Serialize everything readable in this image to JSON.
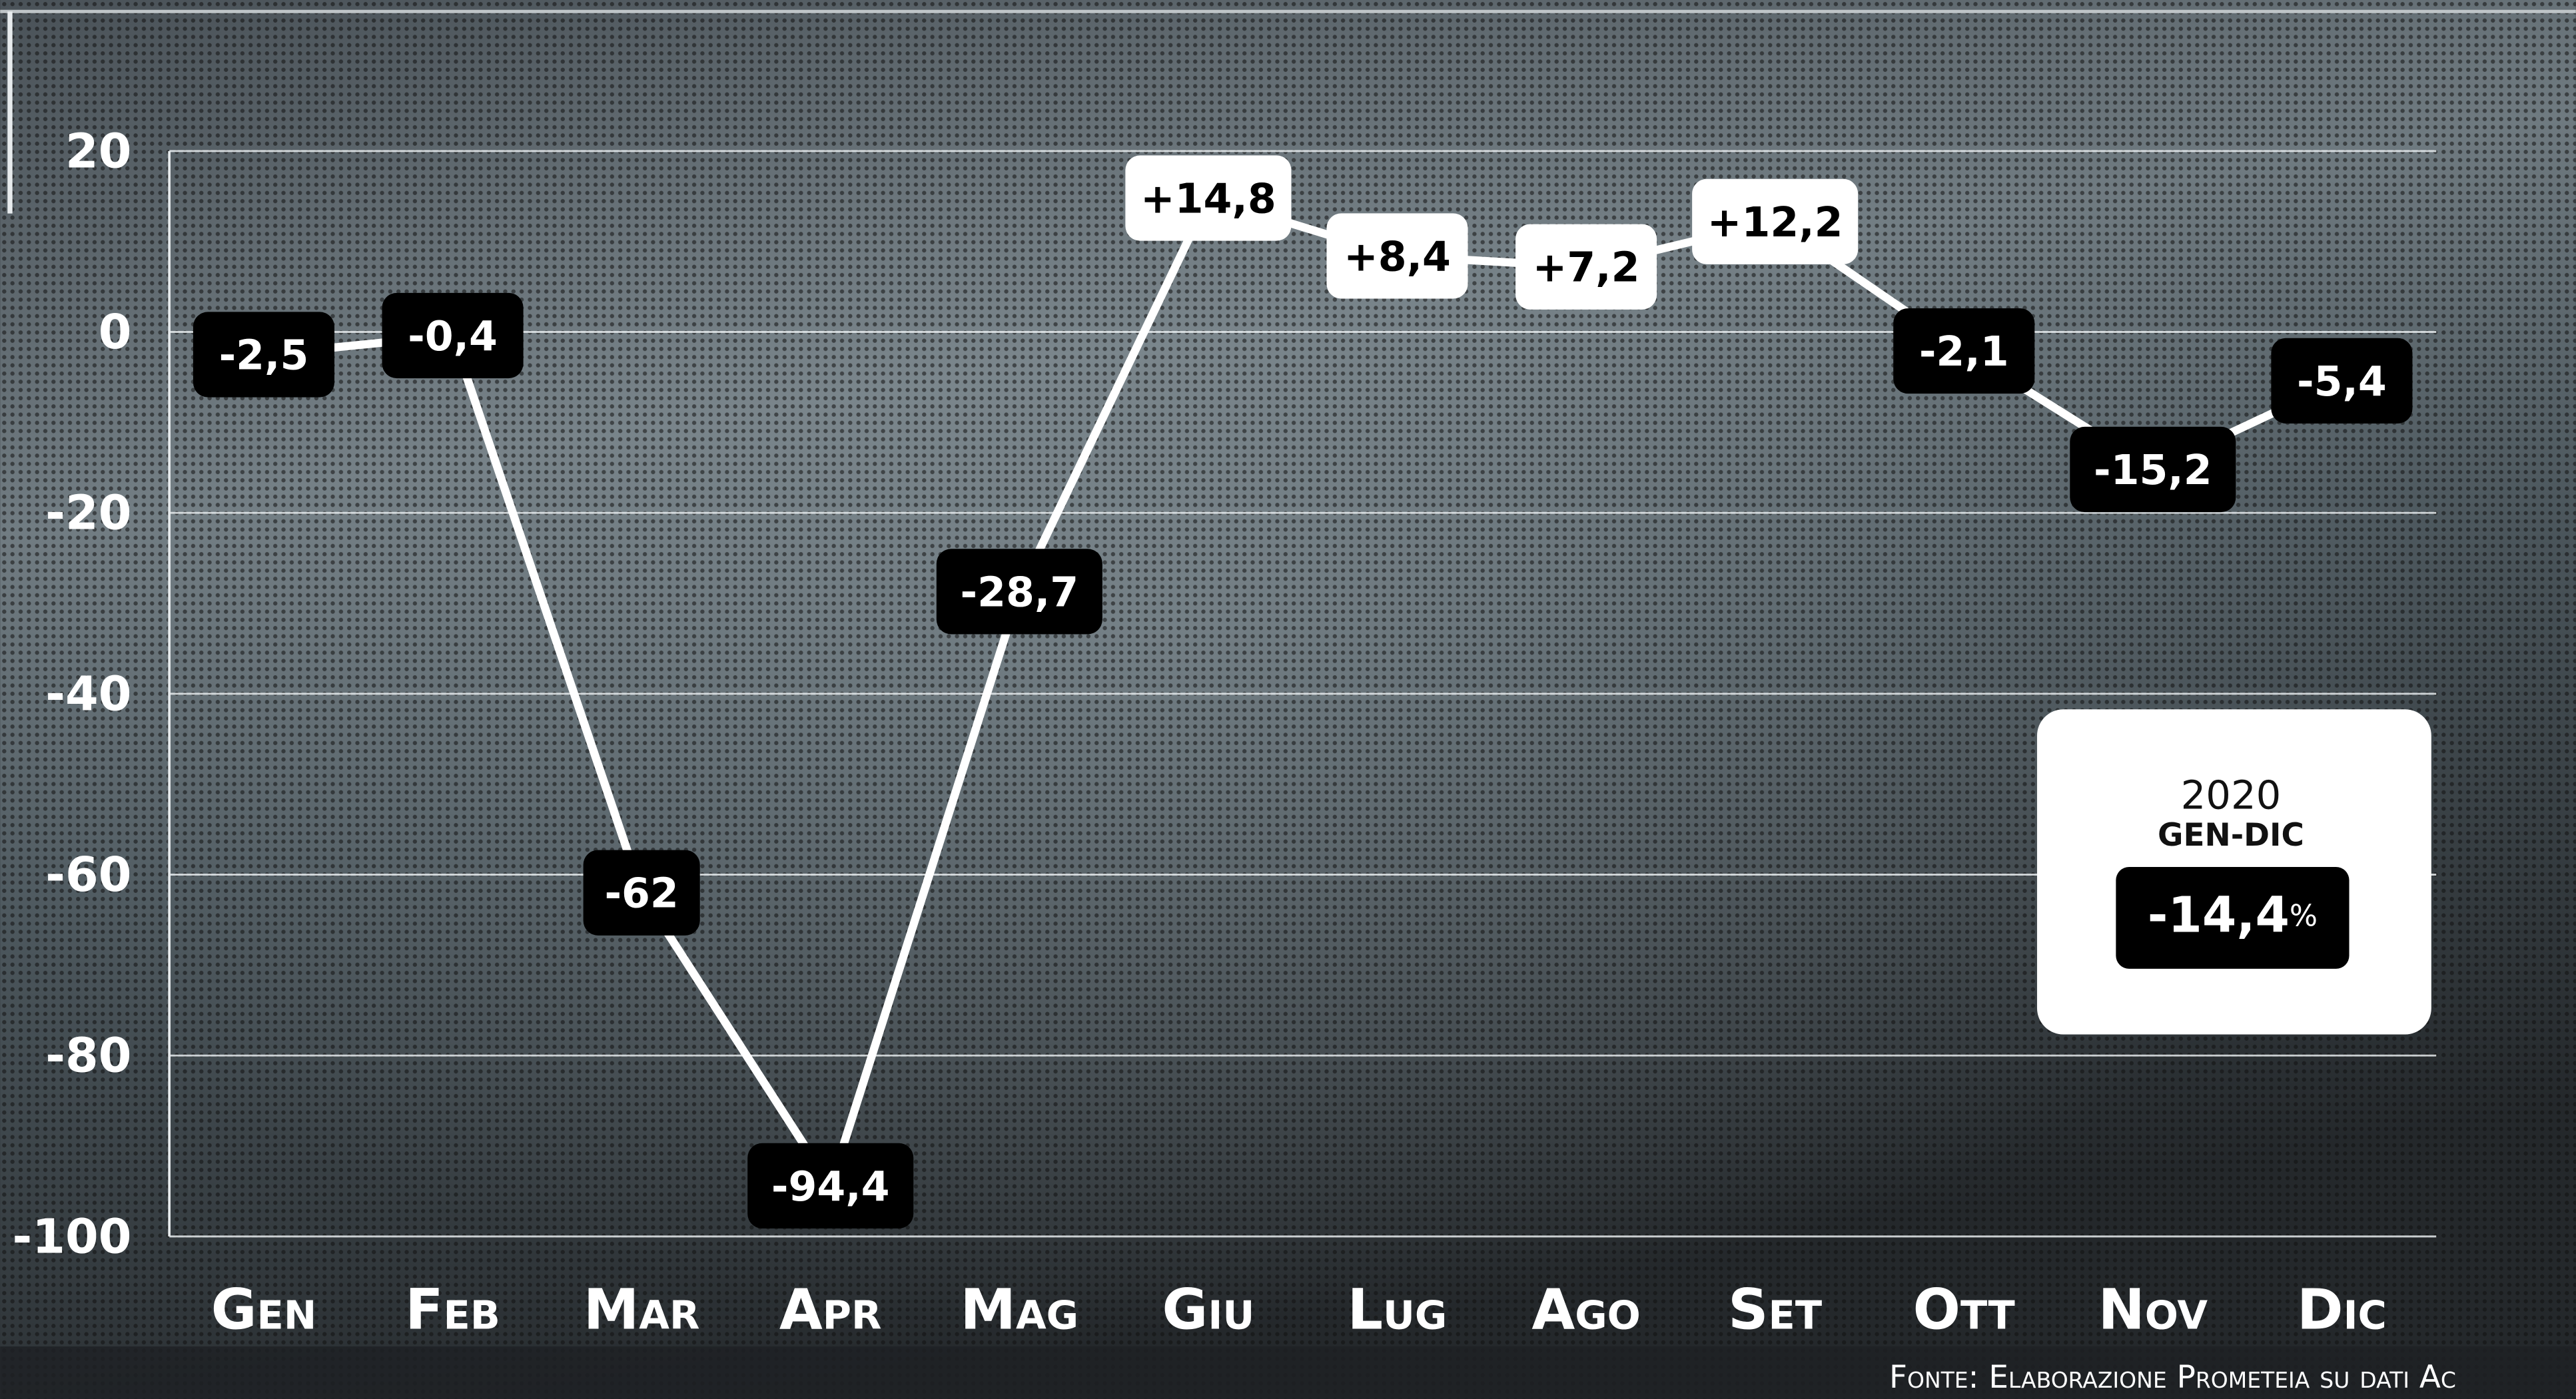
{
  "chart_data": {
    "type": "line",
    "categories": [
      "Gen",
      "Feb",
      "Mar",
      "Apr",
      "Mag",
      "Giu",
      "Lug",
      "Ago",
      "Set",
      "Ott",
      "Nov",
      "Dic"
    ],
    "values": [
      -2.5,
      -0.4,
      -62,
      -94.4,
      -28.7,
      14.8,
      8.4,
      7.2,
      12.2,
      -2.1,
      -15.2,
      -5.4
    ],
    "value_labels": [
      "-2,5",
      "-0,4",
      "-62",
      "-94,4",
      "-28,7",
      "+14,8",
      "+8,4",
      "+7,2",
      "+12,2",
      "-2,1",
      "-15,2",
      "-5,4"
    ],
    "color": "#ffffff",
    "ylim": [
      -100,
      20
    ],
    "yticks": [
      20,
      0,
      -20,
      -40,
      -60,
      -80,
      -100
    ],
    "grid": true,
    "summary": {
      "year": "2020",
      "period": "GEN-DIC",
      "value": -14.4,
      "value_label": "-14,4",
      "unit": "%"
    },
    "source": "Fonte: Elaborazione Prometeia su dati Ac"
  }
}
